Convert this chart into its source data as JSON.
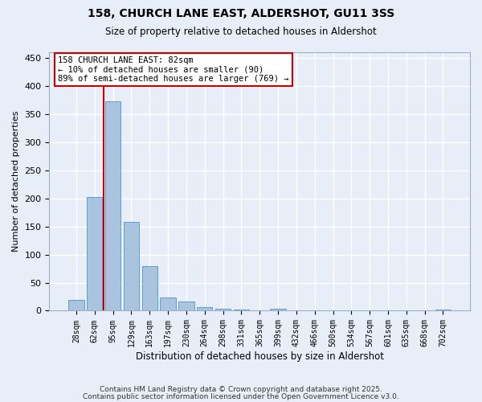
{
  "title1": "158, CHURCH LANE EAST, ALDERSHOT, GU11 3SS",
  "title2": "Size of property relative to detached houses in Aldershot",
  "xlabel": "Distribution of detached houses by size in Aldershot",
  "ylabel": "Number of detached properties",
  "bar_labels": [
    "28sqm",
    "62sqm",
    "95sqm",
    "129sqm",
    "163sqm",
    "197sqm",
    "230sqm",
    "264sqm",
    "298sqm",
    "331sqm",
    "365sqm",
    "399sqm",
    "432sqm",
    "466sqm",
    "500sqm",
    "534sqm",
    "567sqm",
    "601sqm",
    "635sqm",
    "668sqm",
    "702sqm"
  ],
  "bar_values": [
    19,
    202,
    372,
    158,
    80,
    23,
    16,
    7,
    4,
    2,
    0,
    3,
    0,
    0,
    0,
    0,
    0,
    0,
    0,
    0,
    2
  ],
  "bar_color": "#aac4e0",
  "bar_edgecolor": "#5a9fd4",
  "vline_x": 1.5,
  "vline_color": "#cc0000",
  "annotation_text": "158 CHURCH LANE EAST: 82sqm\n← 10% of detached houses are smaller (90)\n89% of semi-detached houses are larger (769) →",
  "annotation_box_color": "#ffffff",
  "annotation_box_edgecolor": "#cc0000",
  "ylim": [
    0,
    460
  ],
  "background_color": "#e8eef8",
  "grid_color": "#ffffff",
  "footer1": "Contains HM Land Registry data © Crown copyright and database right 2025.",
  "footer2": "Contains public sector information licensed under the Open Government Licence v3.0.",
  "yticks": [
    0,
    50,
    100,
    150,
    200,
    250,
    300,
    350,
    400,
    450
  ]
}
